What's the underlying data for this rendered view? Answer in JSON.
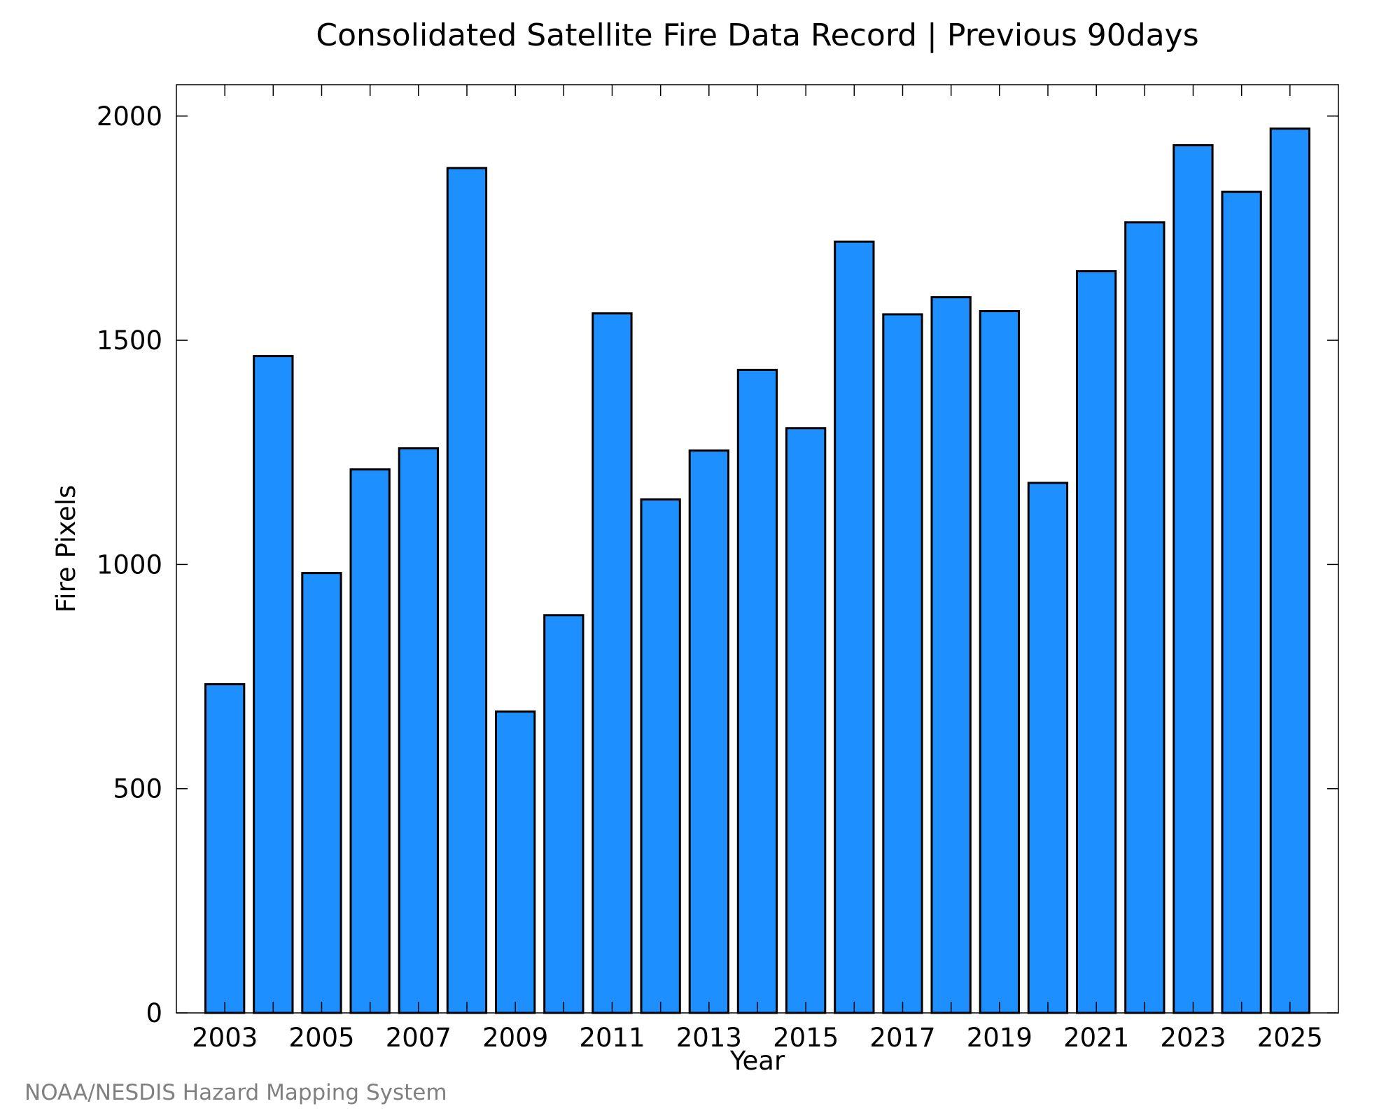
{
  "chart_data": {
    "type": "bar",
    "title": "Consolidated Satellite Fire Data Record | Previous 90days",
    "xlabel": "Year",
    "ylabel": "Fire Pixels",
    "categories": [
      "2003",
      "2004",
      "2005",
      "2006",
      "2007",
      "2008",
      "2009",
      "2010",
      "2011",
      "2012",
      "2013",
      "2014",
      "2015",
      "2016",
      "2017",
      "2018",
      "2019",
      "2020",
      "2021",
      "2022",
      "2023",
      "2024",
      "2025"
    ],
    "x_tick_labels": [
      "2003",
      "2005",
      "2007",
      "2009",
      "2011",
      "2013",
      "2015",
      "2017",
      "2019",
      "2021",
      "2023",
      "2025"
    ],
    "y_ticks": [
      0,
      500,
      1000,
      1500,
      2000
    ],
    "y_tick_labels": [
      "0",
      "500",
      "1000",
      "1500",
      "2000"
    ],
    "values": [
      733,
      1465,
      981,
      1212,
      1259,
      1884,
      672,
      887,
      1560,
      1145,
      1254,
      1434,
      1304,
      1720,
      1558,
      1596,
      1565,
      1182,
      1654,
      1763,
      1935,
      1831,
      1972
    ],
    "ylim": [
      0,
      2070
    ],
    "grid": false,
    "bar_color": "#1e8fff",
    "bar_edge_color": "#000000"
  },
  "credit": "NOAA/NESDIS Hazard Mapping System"
}
